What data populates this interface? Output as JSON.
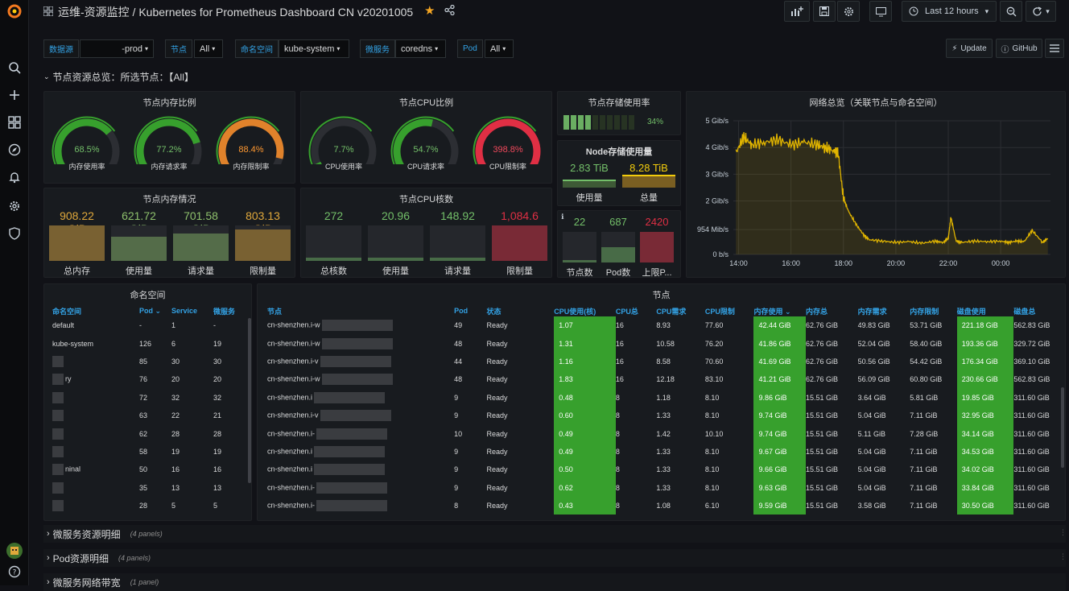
{
  "header": {
    "breadcrumb": "运维-资源监控 / Kubernetes for Prometheus Dashboard CN v20201005",
    "time_range": "Last 12 hours"
  },
  "variables": [
    {
      "label": "数据源",
      "value": "-prod"
    },
    {
      "label": "节点",
      "value": "All"
    },
    {
      "label": "命名空间",
      "value": "kube-system"
    },
    {
      "label": "微服务",
      "value": "coredns"
    },
    {
      "label": "Pod",
      "value": "All"
    }
  ],
  "buttons": {
    "update": "Update",
    "github": "GitHub"
  },
  "row1": {
    "title": "节点资源总览：所选节点：【All】"
  },
  "panels": {
    "mem_ratio": {
      "title": "节点内存比例",
      "gauges": [
        {
          "value": "68.5%",
          "label": "内存使用率",
          "pct": 68.5,
          "color": "#37a02d"
        },
        {
          "value": "77.2%",
          "label": "内存请求率",
          "pct": 77.2,
          "color": "#37a02d"
        },
        {
          "value": "88.4%",
          "label": "内存限制率",
          "pct": 88.4,
          "color": "#e0822b"
        }
      ]
    },
    "cpu_ratio": {
      "title": "节点CPU比例",
      "gauges": [
        {
          "value": "7.7%",
          "label": "CPU使用率",
          "pct": 7.7,
          "color": "#37a02d"
        },
        {
          "value": "54.7%",
          "label": "CPU请求率",
          "pct": 54.7,
          "color": "#37a02d"
        },
        {
          "value": "398.8%",
          "label": "CPU限制率",
          "pct": 100,
          "color": "#e02f44"
        }
      ]
    },
    "storage_rate": {
      "title": "节点存储使用率",
      "value": "34%",
      "pct": 34
    },
    "node_storage": {
      "title": "Node存储使用量",
      "used": {
        "value": "2.83 TiB",
        "label": "使用量"
      },
      "total": {
        "value": "8.28 TiB",
        "label": "总量"
      }
    },
    "mem_status": {
      "title": "节点内存情况",
      "stats": [
        {
          "value": "908.22 GiB",
          "label": "总内存",
          "color": "#e0a83b",
          "fill": 1.0
        },
        {
          "value": "621.72 GiB",
          "label": "使用量",
          "color": "#8ec06c",
          "fill": 0.68
        },
        {
          "value": "701.58 GiB",
          "label": "请求量",
          "color": "#8ec06c",
          "fill": 0.77
        },
        {
          "value": "803.13 GiB",
          "label": "限制量",
          "color": "#e0a83b",
          "fill": 0.88
        }
      ]
    },
    "cpu_cores": {
      "title": "节点CPU核数",
      "stats": [
        {
          "value": "272",
          "label": "总核数",
          "color": "#73bf69",
          "fill": 0.1
        },
        {
          "value": "20.96",
          "label": "使用量",
          "color": "#73bf69",
          "fill": 0.01
        },
        {
          "value": "148.92",
          "label": "请求量",
          "color": "#73bf69",
          "fill": 0.05
        },
        {
          "value": "1,084.6",
          "label": "限制量",
          "color": "#e02f44",
          "fill": 1.0
        }
      ]
    },
    "counts": {
      "stats": [
        {
          "value": "22",
          "label": "节点数",
          "color": "#73bf69",
          "fill": 0.03
        },
        {
          "value": "687",
          "label": "Pod数",
          "color": "#73bf69",
          "fill": 0.5
        },
        {
          "value": "2420",
          "label": "上限P...",
          "color": "#e02f44",
          "fill": 1.0
        }
      ]
    },
    "network": {
      "title": "网络总览（关联节点与命名空间）"
    }
  },
  "chart_data": {
    "type": "line",
    "title": "网络总览（关联节点与命名空间）",
    "x_ticks": [
      "14:00",
      "16:00",
      "18:00",
      "20:00",
      "22:00",
      "00:00"
    ],
    "y_ticks": [
      "0 b/s",
      "954 Mib/s",
      "2 Gib/s",
      "3 Gib/s",
      "4 Gib/s",
      "5 Gib/s"
    ],
    "ylim": [
      0,
      5
    ],
    "x_hours": [
      13.9,
      14.2,
      14.5,
      15.0,
      15.5,
      16.0,
      16.5,
      17.0,
      17.3,
      17.6,
      17.8,
      18.0,
      18.2,
      18.5,
      18.8,
      19.0,
      19.5,
      20.0,
      20.5,
      21.0,
      21.5,
      21.8,
      22.0,
      22.1,
      22.3,
      22.5,
      23.0,
      23.5,
      24.0,
      24.3,
      24.6,
      24.9,
      25.2,
      25.6,
      25.8
    ],
    "values": [
      3.8,
      4.4,
      4.1,
      4.2,
      4.3,
      4.1,
      4.2,
      4.1,
      4.0,
      3.9,
      3.8,
      2.1,
      1.6,
      1.1,
      0.7,
      0.55,
      0.5,
      0.45,
      0.48,
      0.42,
      0.5,
      0.45,
      0.6,
      1.4,
      0.5,
      0.45,
      0.5,
      0.48,
      0.5,
      0.45,
      0.5,
      0.48,
      0.9,
      0.45,
      0.6
    ],
    "color": "#e0b400"
  },
  "namespace_table": {
    "title": "命名空间",
    "columns": [
      "命名空间",
      "Pod",
      "Service",
      "微服务"
    ],
    "rows": [
      [
        "default",
        "-",
        "1",
        "-"
      ],
      [
        "kube-system",
        "126",
        "6",
        "19"
      ],
      [
        "",
        "85",
        "30",
        "30"
      ],
      [
        "ry",
        "76",
        "20",
        "20"
      ],
      [
        "",
        "72",
        "32",
        "32"
      ],
      [
        "",
        "63",
        "22",
        "21"
      ],
      [
        "",
        "62",
        "28",
        "28"
      ],
      [
        "",
        "58",
        "19",
        "19"
      ],
      [
        "ninal",
        "50",
        "16",
        "16"
      ],
      [
        "",
        "35",
        "13",
        "13"
      ],
      [
        "",
        "28",
        "5",
        "5"
      ]
    ]
  },
  "node_table": {
    "title": "节点",
    "columns": [
      "节点",
      "Pod",
      "状态",
      "CPU使用(核)",
      "CPU总",
      "CPU需求",
      "CPU限制",
      "内存使用",
      "内存总",
      "内存需求",
      "内存限制",
      "磁盘使用",
      "磁盘总"
    ],
    "rows": [
      [
        "cn-shenzhen.i-w",
        "49",
        "Ready",
        "1.07",
        "16",
        "8.93",
        "77.60",
        "42.44 GiB",
        "62.76 GiB",
        "49.83 GiB",
        "53.71 GiB",
        "221.18 GiB",
        "562.83 GiB"
      ],
      [
        "cn-shenzhen.i-w",
        "48",
        "Ready",
        "1.31",
        "16",
        "10.58",
        "76.20",
        "41.86 GiB",
        "62.76 GiB",
        "52.04 GiB",
        "58.40 GiB",
        "193.36 GiB",
        "329.72 GiB"
      ],
      [
        "cn-shenzhen.i-v",
        "44",
        "Ready",
        "1.16",
        "16",
        "8.58",
        "70.60",
        "41.69 GiB",
        "62.76 GiB",
        "50.56 GiB",
        "54.42 GiB",
        "176.34 GiB",
        "369.10 GiB"
      ],
      [
        "cn-shenzhen.i-w",
        "48",
        "Ready",
        "1.83",
        "16",
        "12.18",
        "83.10",
        "41.21 GiB",
        "62.76 GiB",
        "56.09 GiB",
        "60.80 GiB",
        "230.66 GiB",
        "562.83 GiB"
      ],
      [
        "cn-shenzhen.i",
        "9",
        "Ready",
        "0.48",
        "8",
        "1.18",
        "8.10",
        "9.86 GiB",
        "15.51 GiB",
        "3.64 GiB",
        "5.81 GiB",
        "19.85 GiB",
        "311.60 GiB"
      ],
      [
        "cn-shenzhen.i-v",
        "9",
        "Ready",
        "0.60",
        "8",
        "1.33",
        "8.10",
        "9.74 GiB",
        "15.51 GiB",
        "5.04 GiB",
        "7.11 GiB",
        "32.95 GiB",
        "311.60 GiB"
      ],
      [
        "cn-shenzhen.i-",
        "10",
        "Ready",
        "0.49",
        "8",
        "1.42",
        "10.10",
        "9.74 GiB",
        "15.51 GiB",
        "5.11 GiB",
        "7.28 GiB",
        "34.14 GiB",
        "311.60 GiB"
      ],
      [
        "cn-shenzhen.i",
        "9",
        "Ready",
        "0.49",
        "8",
        "1.33",
        "8.10",
        "9.67 GiB",
        "15.51 GiB",
        "5.04 GiB",
        "7.11 GiB",
        "34.53 GiB",
        "311.60 GiB"
      ],
      [
        "cn-shenzhen.i",
        "9",
        "Ready",
        "0.50",
        "8",
        "1.33",
        "8.10",
        "9.66 GiB",
        "15.51 GiB",
        "5.04 GiB",
        "7.11 GiB",
        "34.02 GiB",
        "311.60 GiB"
      ],
      [
        "cn-shenzhen.i-",
        "9",
        "Ready",
        "0.62",
        "8",
        "1.33",
        "8.10",
        "9.63 GiB",
        "15.51 GiB",
        "5.04 GiB",
        "7.11 GiB",
        "33.84 GiB",
        "311.60 GiB"
      ],
      [
        "cn-shenzhen.i-",
        "8",
        "Ready",
        "0.43",
        "8",
        "1.08",
        "6.10",
        "9.59 GiB",
        "15.51 GiB",
        "3.58 GiB",
        "7.11 GiB",
        "30.50 GiB",
        "311.60 GiB"
      ]
    ]
  },
  "collapsed_rows": [
    {
      "title": "微服务资源明细",
      "count": "(4 panels)"
    },
    {
      "title": "Pod资源明细",
      "count": "(4 panels)"
    },
    {
      "title": "微服务网络带宽",
      "count": "(1 panel)"
    }
  ]
}
